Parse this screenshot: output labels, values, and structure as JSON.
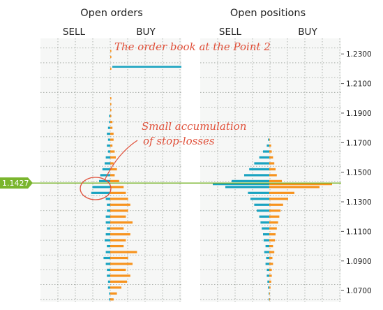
{
  "chart_data": [
    {
      "type": "bar",
      "orientation": "horizontal",
      "title": "Open orders",
      "left_label": "SELL",
      "right_label": "BUY",
      "ylim": [
        1.0625,
        1.2405
      ],
      "series": [
        {
          "name": "SELL",
          "color": "#1aa3c0"
        },
        {
          "name": "BUY",
          "color": "#f7931e"
        }
      ],
      "profile": {
        "price": [
          1.064,
          1.068,
          1.072,
          1.076,
          1.08,
          1.084,
          1.088,
          1.092,
          1.096,
          1.1,
          1.104,
          1.108,
          1.112,
          1.116,
          1.12,
          1.124,
          1.128,
          1.132,
          1.136,
          1.14,
          1.144,
          1.148,
          1.152,
          1.156,
          1.16,
          1.164,
          1.168,
          1.172,
          1.176,
          1.18,
          1.184,
          1.188,
          1.192,
          1.196,
          1.2,
          1.204,
          1.208,
          1.212,
          1.216,
          1.22,
          1.224,
          1.228,
          1.232,
          1.236
        ],
        "sell": [
          1,
          1,
          2,
          2,
          3,
          3,
          4,
          6,
          4,
          3,
          5,
          4,
          3,
          4,
          4,
          3,
          3,
          4,
          17,
          16,
          10,
          9,
          7,
          5,
          4,
          2,
          3,
          2,
          3,
          2,
          1,
          1,
          0,
          0,
          0,
          0,
          0,
          0,
          0,
          0,
          0,
          0,
          0,
          0
        ],
        "buy": [
          3,
          6,
          10,
          15,
          18,
          14,
          20,
          16,
          24,
          12,
          14,
          18,
          12,
          20,
          14,
          16,
          18,
          16,
          14,
          12,
          8,
          4,
          6,
          3,
          5,
          4,
          2,
          3,
          3,
          2,
          2,
          1,
          1,
          1,
          1,
          0,
          0,
          0,
          0,
          1,
          0,
          1,
          1,
          0
        ]
      },
      "annotations": [
        "The order book at the Point 2",
        "Small accumulation",
        "of stop-losses"
      ]
    },
    {
      "type": "bar",
      "orientation": "horizontal",
      "title": "Open positions",
      "left_label": "SELL",
      "right_label": "BUY",
      "ylim": [
        1.0625,
        1.2405
      ],
      "series": [
        {
          "name": "SELL",
          "color": "#1aa3c0"
        },
        {
          "name": "BUY",
          "color": "#f7931e"
        }
      ],
      "profile": {
        "price": [
          1.064,
          1.068,
          1.072,
          1.076,
          1.08,
          1.084,
          1.088,
          1.092,
          1.096,
          1.1,
          1.104,
          1.108,
          1.112,
          1.116,
          1.12,
          1.124,
          1.128,
          1.132,
          1.136,
          1.14,
          1.142,
          1.144,
          1.148,
          1.152,
          1.156,
          1.16,
          1.164,
          1.168,
          1.172
        ],
        "sell": [
          1,
          1,
          2,
          3,
          4,
          4,
          6,
          5,
          8,
          6,
          9,
          10,
          12,
          14,
          16,
          20,
          24,
          30,
          34,
          70,
          90,
          60,
          40,
          32,
          24,
          16,
          10,
          4,
          2
        ],
        "buy": [
          1,
          1,
          2,
          3,
          4,
          4,
          6,
          5,
          8,
          6,
          9,
          10,
          12,
          14,
          16,
          18,
          22,
          30,
          40,
          80,
          100,
          20,
          12,
          10,
          8,
          6,
          4,
          3,
          1
        ]
      }
    }
  ],
  "y_axis": {
    "ticks": [
      1.23,
      1.21,
      1.19,
      1.17,
      1.15,
      1.13,
      1.11,
      1.09,
      1.07
    ],
    "tick_labels": [
      "1.2300",
      "1.2100",
      "1.1900",
      "1.1700",
      "1.1500",
      "1.1300",
      "1.1100",
      "1.0900",
      "1.0700"
    ]
  },
  "current_price": {
    "value": 1.1427,
    "label": "1.1427",
    "color": "#7ab52d"
  },
  "blue_level": 1.2213,
  "colors": {
    "sell": "#1aa3c0",
    "buy": "#f7931e",
    "grid": "#9aa09a",
    "panel_bg": "#f6f7f6",
    "annotation": "#e0503a"
  }
}
